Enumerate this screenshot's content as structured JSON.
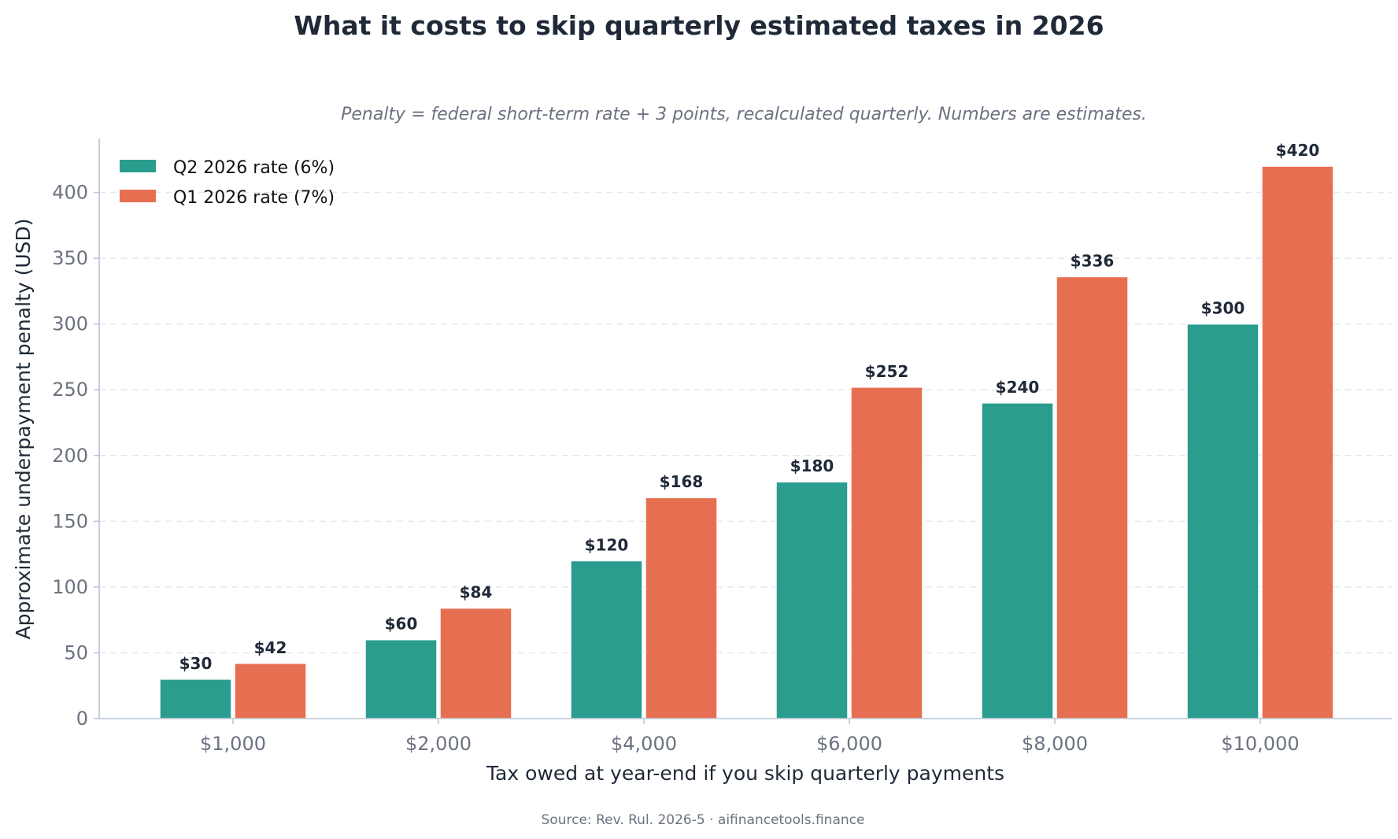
{
  "chart_data": {
    "type": "bar",
    "title": "What it costs to skip quarterly estimated taxes in 2026",
    "subtitle": "Penalty = federal short-term rate + 3 points, recalculated quarterly. Numbers are estimates.",
    "xlabel": "Tax owed at year-end if you skip quarterly payments",
    "ylabel": "Approximate underpayment penalty (USD)",
    "categories": [
      "$1,000",
      "$2,000",
      "$4,000",
      "$6,000",
      "$8,000",
      "$10,000"
    ],
    "series": [
      {
        "name": "Q2 2026 rate (6%)",
        "color": "#2a9d8f",
        "values": [
          30,
          60,
          120,
          180,
          240,
          300
        ],
        "labels": [
          "$30",
          "$60",
          "$120",
          "$180",
          "$240",
          "$300"
        ]
      },
      {
        "name": "Q1 2026 rate (7%)",
        "color": "#e76f51",
        "values": [
          42,
          84,
          168,
          252,
          336,
          420
        ],
        "labels": [
          "$42",
          "$84",
          "$168",
          "$252",
          "$336",
          "$420"
        ]
      }
    ],
    "ylim": [
      0,
      441
    ],
    "yticks": [
      0,
      50,
      100,
      150,
      200,
      250,
      300,
      350,
      400
    ],
    "grid": "horizontal, dashed",
    "legend_position": "top-left",
    "source": "Source: Rev. Rul. 2026-5 · aifinancetools.finance"
  }
}
